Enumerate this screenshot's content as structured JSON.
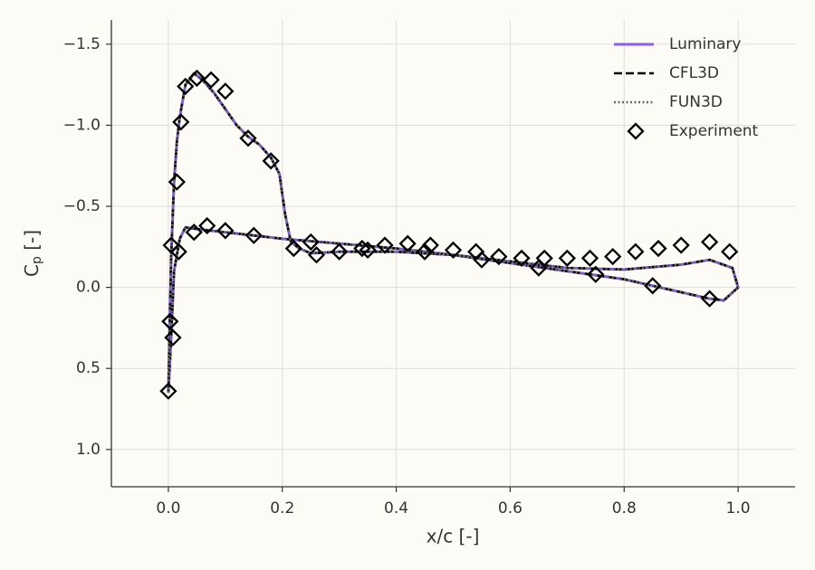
{
  "chart_data": {
    "type": "line",
    "xlabel": "x/c [-]",
    "ylabel": [
      "C",
      "p",
      " [-]"
    ],
    "xlim": [
      -0.1,
      1.1
    ],
    "ylim": [
      -1.65,
      1.23
    ],
    "y_inverted": true,
    "xticks": [
      {
        "value": 0,
        "label": "0.0"
      },
      0.2,
      0.4,
      0.6,
      0.8,
      {
        "value": 1,
        "label": "1.0"
      }
    ],
    "yticks": [
      {
        "value": -1.5,
        "label": "−1.5"
      },
      {
        "value": -1,
        "label": "−1.0"
      },
      {
        "value": -0.5,
        "label": "−0.5"
      },
      {
        "value": 0,
        "label": "0.0"
      },
      0.5,
      {
        "value": 1,
        "label": "1.0"
      }
    ],
    "grid": true,
    "legend": "upper right",
    "series": [
      {
        "name": "Luminary",
        "color": "#8b5cf6",
        "style": "solid",
        "x": [
          0,
          0.002,
          0.005,
          0.01,
          0.015,
          0.02,
          0.03,
          0.045,
          0.06,
          0.08,
          0.1,
          0.12,
          0.14,
          0.16,
          0.18,
          0.195,
          0.205,
          0.215,
          0.23,
          0.25,
          0.3,
          0.4,
          0.5,
          0.6,
          0.7,
          0.8,
          0.9,
          0.95,
          0.975,
          1,
          0.99,
          0.95,
          0.9,
          0.8,
          0.7,
          0.6,
          0.5,
          0.4,
          0.3,
          0.2,
          0.1,
          0.05,
          0.03,
          0.02,
          0.01,
          0.005,
          0
        ],
        "values": [
          0.65,
          0.3,
          -0.2,
          -0.65,
          -0.9,
          -1.05,
          -1.25,
          -1.32,
          -1.28,
          -1.2,
          -1.1,
          -1.0,
          -0.93,
          -0.88,
          -0.8,
          -0.7,
          -0.45,
          -0.28,
          -0.24,
          -0.21,
          -0.22,
          -0.22,
          -0.2,
          -0.15,
          -0.1,
          -0.05,
          0.03,
          0.07,
          0.08,
          0,
          -0.12,
          -0.17,
          -0.14,
          -0.11,
          -0.12,
          -0.16,
          -0.2,
          -0.24,
          -0.27,
          -0.3,
          -0.34,
          -0.36,
          -0.37,
          -0.3,
          -0.1,
          0.3,
          0.65
        ]
      },
      {
        "name": "CFL3D",
        "color": "#000000",
        "style": "dashed",
        "x": [
          0,
          0.002,
          0.005,
          0.01,
          0.015,
          0.02,
          0.03,
          0.045,
          0.06,
          0.08,
          0.1,
          0.12,
          0.14,
          0.16,
          0.18,
          0.195,
          0.205,
          0.215,
          0.23,
          0.25,
          0.3,
          0.4,
          0.5,
          0.6,
          0.7,
          0.8,
          0.9,
          0.95,
          0.975,
          1,
          0.99,
          0.95,
          0.9,
          0.8,
          0.7,
          0.6,
          0.5,
          0.4,
          0.3,
          0.2,
          0.1,
          0.05,
          0.03,
          0.02,
          0.01,
          0.005,
          0
        ],
        "values": [
          0.65,
          0.3,
          -0.2,
          -0.65,
          -0.9,
          -1.05,
          -1.25,
          -1.32,
          -1.28,
          -1.2,
          -1.1,
          -1.0,
          -0.93,
          -0.88,
          -0.8,
          -0.7,
          -0.45,
          -0.28,
          -0.24,
          -0.21,
          -0.22,
          -0.22,
          -0.2,
          -0.15,
          -0.1,
          -0.05,
          0.03,
          0.07,
          0.08,
          0,
          -0.12,
          -0.17,
          -0.14,
          -0.11,
          -0.12,
          -0.16,
          -0.2,
          -0.24,
          -0.27,
          -0.3,
          -0.34,
          -0.36,
          -0.37,
          -0.3,
          -0.1,
          0.3,
          0.65
        ]
      },
      {
        "name": "FUN3D",
        "color": "#666666",
        "style": "dotted",
        "x": [
          0,
          0.002,
          0.005,
          0.01,
          0.015,
          0.02,
          0.03,
          0.045,
          0.06,
          0.08,
          0.1,
          0.12,
          0.14,
          0.16,
          0.18,
          0.195,
          0.205,
          0.215,
          0.23,
          0.25,
          0.3,
          0.4,
          0.5,
          0.6,
          0.7,
          0.8,
          0.9,
          0.95,
          0.975,
          1,
          0.99,
          0.95,
          0.9,
          0.8,
          0.7,
          0.6,
          0.5,
          0.4,
          0.3,
          0.2,
          0.1,
          0.05,
          0.03,
          0.02,
          0.01,
          0.005,
          0
        ],
        "values": [
          0.65,
          0.3,
          -0.2,
          -0.65,
          -0.9,
          -1.05,
          -1.25,
          -1.32,
          -1.28,
          -1.2,
          -1.1,
          -1.0,
          -0.93,
          -0.88,
          -0.8,
          -0.7,
          -0.45,
          -0.28,
          -0.24,
          -0.21,
          -0.22,
          -0.22,
          -0.2,
          -0.15,
          -0.1,
          -0.05,
          0.03,
          0.07,
          0.08,
          0,
          -0.12,
          -0.17,
          -0.14,
          -0.11,
          -0.12,
          -0.16,
          -0.2,
          -0.24,
          -0.27,
          -0.3,
          -0.34,
          -0.36,
          -0.37,
          -0.3,
          -0.1,
          0.3,
          0.65
        ]
      },
      {
        "name": "Experiment",
        "color": "#000000",
        "style": "diamond",
        "x": [
          0,
          0.003,
          0.008,
          0.005,
          0.018,
          0.015,
          0.022,
          0.03,
          0.05,
          0.075,
          0.1,
          0.14,
          0.18,
          0.045,
          0.068,
          0.1,
          0.15,
          0.22,
          0.25,
          0.26,
          0.3,
          0.34,
          0.35,
          0.38,
          0.42,
          0.45,
          0.46,
          0.5,
          0.54,
          0.55,
          0.58,
          0.62,
          0.65,
          0.66,
          0.7,
          0.74,
          0.75,
          0.78,
          0.82,
          0.85,
          0.86,
          0.9,
          0.95,
          0.95,
          0.985
        ],
        "values": [
          0.64,
          0.21,
          0.31,
          -0.26,
          -0.22,
          -0.65,
          -1.02,
          -1.24,
          -1.29,
          -1.28,
          -1.21,
          -0.92,
          -0.78,
          -0.34,
          -0.38,
          -0.35,
          -0.32,
          -0.24,
          -0.28,
          -0.2,
          -0.22,
          -0.24,
          -0.23,
          -0.26,
          -0.27,
          -0.22,
          -0.26,
          -0.23,
          -0.22,
          -0.17,
          -0.19,
          -0.18,
          -0.12,
          -0.18,
          -0.18,
          -0.18,
          -0.08,
          -0.19,
          -0.22,
          -0.01,
          -0.24,
          -0.26,
          -0.28,
          0.07,
          -0.22
        ]
      }
    ]
  }
}
